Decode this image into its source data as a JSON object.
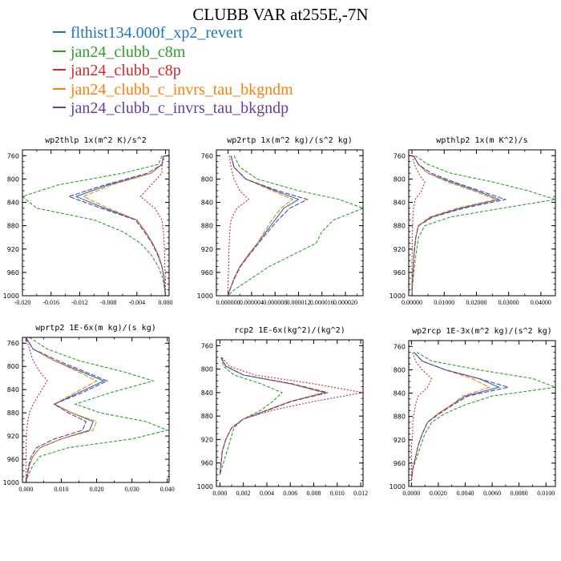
{
  "title": "CLUBB VAR at255E,-7N",
  "legend": [
    {
      "label": "flthist134.000f_xp2_revert",
      "color": "#1f77b4"
    },
    {
      "label": "jan24_clubb_c8m",
      "color": "#2ca02c"
    },
    {
      "label": "jan24_clubb_c8p",
      "color": "#d62728"
    },
    {
      "label": "jan24_clubb_c_invrs_tau_bkgndm",
      "color": "#ff7f0e"
    },
    {
      "label": "jan24_clubb_c_invrs_tau_bkgndp",
      "color": "#6a3d9a"
    }
  ],
  "chart_data": [
    {
      "type": "line",
      "title": "wp2thlp   1x(m^2 K)/s^2",
      "ylim": [
        1000,
        750
      ],
      "xlim": [
        -0.02,
        0.0005
      ],
      "yticks": [
        760,
        800,
        840,
        880,
        920,
        960,
        1000
      ],
      "xticks": [
        "-0.020",
        "-0.016",
        "-0.012",
        "-0.008",
        "-0.004",
        "0.000"
      ],
      "xtick_values": [
        -0.02,
        -0.016,
        -0.012,
        -0.008,
        -0.004,
        0.0
      ],
      "y": [
        760,
        775,
        790,
        810,
        830,
        850,
        870,
        890,
        910,
        930,
        950,
        970,
        990,
        1000
      ],
      "series": [
        {
          "color": "#1f77b4",
          "dash": "",
          "values": [
            -0.0003,
            -0.0005,
            -0.002,
            -0.008,
            -0.0125,
            -0.0085,
            -0.004,
            -0.0028,
            -0.0018,
            -0.001,
            -0.0005,
            -0.0002,
            -0.0001,
            0
          ]
        },
        {
          "color": "#2ca02c",
          "dash": "4,2",
          "values": [
            -0.0005,
            -0.001,
            -0.006,
            -0.015,
            -0.02,
            -0.018,
            -0.01,
            -0.006,
            -0.0035,
            -0.002,
            -0.001,
            -0.0004,
            -0.0001,
            0
          ]
        },
        {
          "color": "#d62728",
          "dash": "2,2",
          "values": [
            -0.0001,
            -0.0005,
            -0.0005,
            -0.002,
            -0.0035,
            -0.0015,
            -0.0005,
            -0.0003,
            -0.0002,
            -0.0001,
            -0.0001,
            0,
            0,
            0
          ]
        },
        {
          "color": "#ff7f0e",
          "dash": "6,2",
          "values": [
            -0.0003,
            -0.0005,
            -0.002,
            -0.0075,
            -0.0115,
            -0.008,
            -0.004,
            -0.0028,
            -0.0018,
            -0.001,
            -0.0005,
            -0.0002,
            -0.0001,
            0
          ]
        },
        {
          "color": "#6a3d9a",
          "dash": "6,2",
          "values": [
            -0.0003,
            -0.0005,
            -0.0025,
            -0.0085,
            -0.0135,
            -0.009,
            -0.0042,
            -0.003,
            -0.0019,
            -0.0011,
            -0.0005,
            -0.0002,
            -0.0001,
            0
          ]
        }
      ]
    },
    {
      "type": "line",
      "title": "wp2rtp   1x(m^2 kg)/(s^2 kg)",
      "ylim": [
        1000,
        750
      ],
      "xlim": [
        -2e-06,
        2.3e-05
      ],
      "yticks": [
        760,
        800,
        840,
        880,
        920,
        960,
        1000
      ],
      "xticks": [
        "0.000000",
        "0.000004",
        "0.000008",
        "0.000012",
        "0.000016",
        "0.000020"
      ],
      "xtick_values": [
        0,
        4e-06,
        8e-06,
        1.2e-05,
        1.6e-05,
        2e-05
      ],
      "y": [
        760,
        780,
        800,
        820,
        835,
        850,
        870,
        890,
        910,
        930,
        950,
        970,
        990,
        1000
      ],
      "series": [
        {
          "color": "#1f77b4",
          "dash": "",
          "values": [
            5e-07,
            1e-06,
            3e-06,
            8e-06,
            1.2e-05,
            9.5e-06,
            8e-06,
            6.5e-06,
            5e-06,
            3.5e-06,
            2e-06,
            1e-06,
            3e-07,
            0
          ]
        },
        {
          "color": "#2ca02c",
          "dash": "4,2",
          "values": [
            1e-06,
            2e-06,
            5e-06,
            1.2e-05,
            1.9e-05,
            2.3e-05,
            1.8e-05,
            1.6e-05,
            1.5e-05,
            1.1e-05,
            7e-06,
            4e-06,
            1e-06,
            0
          ]
        },
        {
          "color": "#d62728",
          "dash": "2,2",
          "values": [
            2e-07,
            5e-07,
            1e-06,
            2e-06,
            3.5e-06,
            1.5e-06,
            5e-07,
            3e-07,
            2e-07,
            1e-07,
            1e-07,
            0,
            0,
            0
          ]
        },
        {
          "color": "#ff7f0e",
          "dash": "6,2",
          "values": [
            5e-07,
            1e-06,
            3e-06,
            7.5e-06,
            1.1e-05,
            9e-06,
            7.5e-06,
            6.2e-06,
            5e-06,
            3.4e-06,
            2e-06,
            1e-06,
            3e-07,
            0
          ]
        },
        {
          "color": "#6a3d9a",
          "dash": "6,2",
          "values": [
            5e-07,
            1e-06,
            3e-06,
            8.5e-06,
            1.35e-05,
            1.05e-05,
            8.5e-06,
            6.8e-06,
            5.2e-06,
            3.6e-06,
            2.1e-06,
            1.1e-06,
            3e-07,
            0
          ]
        }
      ]
    },
    {
      "type": "line",
      "title": "wpthlp2   1x(m K^2)/s",
      "ylim": [
        1000,
        750
      ],
      "xlim": [
        -0.001,
        0.0445
      ],
      "yticks": [
        760,
        800,
        840,
        880,
        920,
        960,
        1000
      ],
      "xticks": [
        "0.00000",
        "0.01000",
        "0.02000",
        "0.03000",
        "0.04000"
      ],
      "xtick_values": [
        0,
        0.01,
        0.02,
        0.03,
        0.04
      ],
      "y": [
        760,
        775,
        790,
        805,
        820,
        835,
        850,
        865,
        880,
        900,
        920,
        940,
        960,
        980,
        1000
      ],
      "series": [
        {
          "color": "#1f77b4",
          "dash": "",
          "values": [
            0.0005,
            0.002,
            0.005,
            0.012,
            0.02,
            0.027,
            0.015,
            0.006,
            0.002,
            0.0012,
            0.0008,
            0.0005,
            0.0003,
            0.0001,
            0
          ]
        },
        {
          "color": "#2ca02c",
          "dash": "4,2",
          "values": [
            0.001,
            0.005,
            0.012,
            0.025,
            0.036,
            0.0445,
            0.028,
            0.012,
            0.004,
            0.002,
            0.0015,
            0.001,
            0.0006,
            0.0002,
            0
          ]
        },
        {
          "color": "#d62728",
          "dash": "2,2",
          "values": [
            0.0002,
            0.0008,
            0.002,
            0.004,
            0.003,
            0.001,
            0.0005,
            0.0003,
            0.0002,
            0.0001,
            0.0001,
            0,
            0,
            0,
            0
          ]
        },
        {
          "color": "#ff7f0e",
          "dash": "6,2",
          "values": [
            0.0005,
            0.002,
            0.005,
            0.011,
            0.019,
            0.026,
            0.014,
            0.0055,
            0.002,
            0.0012,
            0.0008,
            0.0005,
            0.0003,
            0.0001,
            0
          ]
        },
        {
          "color": "#6a3d9a",
          "dash": "6,2",
          "values": [
            0.0005,
            0.002,
            0.006,
            0.013,
            0.021,
            0.029,
            0.016,
            0.0065,
            0.002,
            0.0012,
            0.0008,
            0.0005,
            0.0003,
            0.0001,
            0
          ]
        }
      ]
    },
    {
      "type": "line",
      "title": "wprtp2   1E-6x(m kg)/(s kg)",
      "ylim": [
        1000,
        750
      ],
      "xlim": [
        -0.001,
        0.0405
      ],
      "yticks": [
        760,
        800,
        840,
        880,
        920,
        960,
        1000
      ],
      "xticks": [
        "0.000",
        "0.010",
        "0.020",
        "0.030",
        "0.040"
      ],
      "xtick_values": [
        0,
        0.01,
        0.02,
        0.03,
        0.04
      ],
      "y": [
        750,
        770,
        790,
        810,
        825,
        845,
        865,
        880,
        895,
        910,
        925,
        940,
        955,
        970,
        990,
        1000
      ],
      "series": [
        {
          "color": "#1f77b4",
          "dash": "",
          "values": [
            0.0,
            0.002,
            0.008,
            0.016,
            0.022,
            0.015,
            0.008,
            0.013,
            0.019,
            0.018,
            0.01,
            0.004,
            0.002,
            0.001,
            0.0003,
            0
          ]
        },
        {
          "color": "#2ca02c",
          "dash": "4,2",
          "values": [
            0.001,
            0.006,
            0.015,
            0.028,
            0.036,
            0.024,
            0.014,
            0.021,
            0.034,
            0.04,
            0.03,
            0.012,
            0.004,
            0.002,
            0.0005,
            0
          ]
        },
        {
          "color": "#d62728",
          "dash": "2,2",
          "values": [
            0.0,
            0.001,
            0.002,
            0.004,
            0.006,
            0.004,
            0.002,
            0.001,
            0.0005,
            0.0002,
            0.0001,
            0,
            0,
            0,
            0,
            0
          ]
        },
        {
          "color": "#ff7f0e",
          "dash": "6,2",
          "values": [
            0.0,
            0.002,
            0.008,
            0.015,
            0.02,
            0.014,
            0.008,
            0.013,
            0.02,
            0.019,
            0.01,
            0.004,
            0.002,
            0.001,
            0.0003,
            0
          ]
        },
        {
          "color": "#6a3d9a",
          "dash": "6,2",
          "values": [
            0.0,
            0.002,
            0.009,
            0.017,
            0.023,
            0.016,
            0.008,
            0.012,
            0.017,
            0.016,
            0.008,
            0.003,
            0.0015,
            0.0008,
            0.0002,
            0
          ]
        }
      ]
    },
    {
      "type": "line",
      "title": "rcp2   1E-6x(kg^2)/(kg^2)",
      "ylim": [
        1000,
        750
      ],
      "xlim": [
        -0.0003,
        0.0122
      ],
      "yticks": [
        760,
        800,
        840,
        880,
        920,
        960,
        1000
      ],
      "xticks": [
        "0.000",
        "0.002",
        "0.004",
        "0.006",
        "0.008",
        "0.010",
        "0.012"
      ],
      "xtick_values": [
        0,
        0.002,
        0.004,
        0.006,
        0.008,
        0.01,
        0.012
      ],
      "y": [
        780,
        795,
        810,
        825,
        840,
        855,
        870,
        885,
        900,
        920,
        940,
        960,
        980
      ],
      "series": [
        {
          "color": "#1f77b4",
          "dash": "",
          "values": [
            0.0001,
            0.0005,
            0.002,
            0.006,
            0.009,
            0.006,
            0.004,
            0.002,
            0.001,
            0.0005,
            0.0002,
            0.0001,
            0
          ]
        },
        {
          "color": "#2ca02c",
          "dash": "4,2",
          "values": [
            0.0001,
            0.0003,
            0.0012,
            0.0035,
            0.0053,
            0.0045,
            0.0035,
            0.002,
            0.0012,
            0.0009,
            0.0006,
            0.0003,
            0
          ]
        },
        {
          "color": "#d62728",
          "dash": "2,2",
          "values": [
            0.0002,
            0.0008,
            0.003,
            0.008,
            0.0122,
            0.008,
            0.0045,
            0.002,
            0.001,
            0.0005,
            0.0002,
            0.0001,
            0
          ]
        },
        {
          "color": "#ff7f0e",
          "dash": "6,2",
          "values": [
            0.0001,
            0.0005,
            0.002,
            0.006,
            0.0088,
            0.006,
            0.004,
            0.002,
            0.001,
            0.0005,
            0.0002,
            0.0001,
            0
          ]
        },
        {
          "color": "#6a3d9a",
          "dash": "6,2",
          "values": [
            0.0001,
            0.0005,
            0.002,
            0.0062,
            0.0092,
            0.0061,
            0.0041,
            0.002,
            0.001,
            0.0005,
            0.0002,
            0.0001,
            0
          ]
        }
      ]
    },
    {
      "type": "line",
      "title": "wp2rcp   1E-3x(m^2 kg)/(s^2 kg)",
      "ylim": [
        1000,
        750
      ],
      "xlim": [
        -0.0002,
        0.0107
      ],
      "yticks": [
        760,
        800,
        840,
        880,
        920,
        960,
        1000
      ],
      "xticks": [
        "0.0000",
        "0.0020",
        "0.0040",
        "0.0060",
        "0.0080",
        "0.0100"
      ],
      "xtick_values": [
        0,
        0.002,
        0.004,
        0.006,
        0.008,
        0.01
      ],
      "y": [
        770,
        785,
        800,
        815,
        830,
        845,
        860,
        875,
        890,
        910,
        930,
        950,
        970,
        990
      ],
      "series": [
        {
          "color": "#1f77b4",
          "dash": "",
          "values": [
            0.0002,
            0.0008,
            0.0025,
            0.005,
            0.0065,
            0.004,
            0.003,
            0.002,
            0.0012,
            0.0008,
            0.0005,
            0.0003,
            0.0001,
            0
          ]
        },
        {
          "color": "#2ca02c",
          "dash": "4,2",
          "values": [
            0.0004,
            0.0015,
            0.005,
            0.009,
            0.0107,
            0.006,
            0.004,
            0.0025,
            0.0015,
            0.001,
            0.0007,
            0.0004,
            0.0001,
            0
          ]
        },
        {
          "color": "#d62728",
          "dash": "2,2",
          "values": [
            0.0001,
            0.0003,
            0.0008,
            0.0015,
            0.0012,
            0.0005,
            0.0003,
            0.0002,
            0.0001,
            0.0001,
            0,
            0,
            0,
            0
          ]
        },
        {
          "color": "#ff7f0e",
          "dash": "6,2",
          "values": [
            0.0002,
            0.0008,
            0.0025,
            0.0045,
            0.0058,
            0.0038,
            0.003,
            0.002,
            0.0012,
            0.0008,
            0.0005,
            0.0003,
            0.0001,
            0
          ]
        },
        {
          "color": "#6a3d9a",
          "dash": "6,2",
          "values": [
            0.0002,
            0.0008,
            0.0025,
            0.005,
            0.0072,
            0.0042,
            0.0031,
            0.0021,
            0.0012,
            0.0008,
            0.0005,
            0.0003,
            0.0001,
            0
          ]
        }
      ]
    }
  ]
}
